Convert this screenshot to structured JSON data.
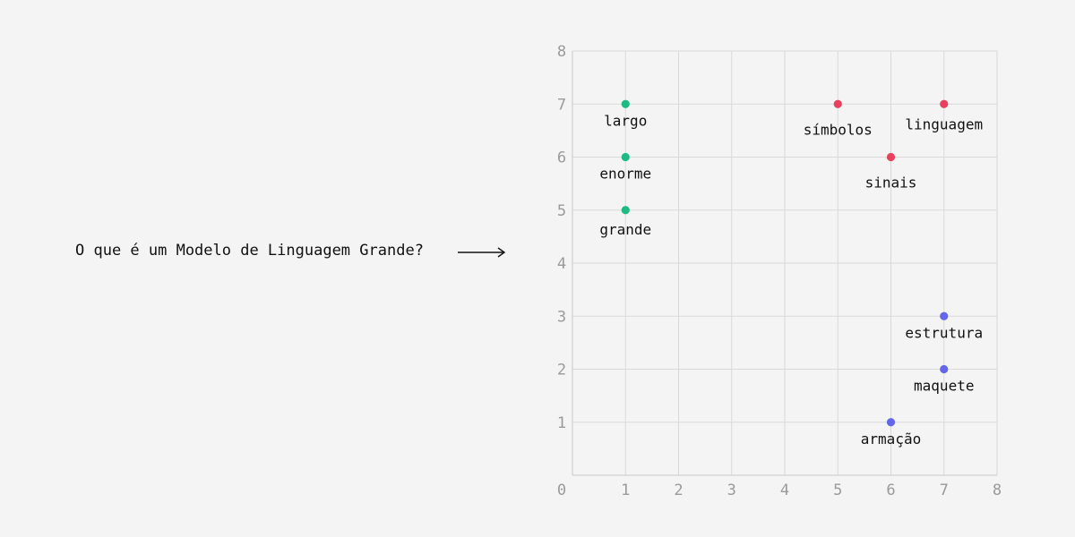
{
  "question": "O que é um Modelo de Linguagem Grande?",
  "chart_data": {
    "type": "scatter",
    "title": "",
    "xlabel": "",
    "ylabel": "",
    "xlim": [
      0,
      8
    ],
    "ylim": [
      0,
      8
    ],
    "grid": true,
    "x_ticks": [
      "0",
      "1",
      "2",
      "3",
      "4",
      "5",
      "6",
      "7",
      "8"
    ],
    "y_ticks": [
      "0",
      "1",
      "2",
      "3",
      "4",
      "5",
      "6",
      "7",
      "8"
    ],
    "points": [
      {
        "label": "largo",
        "x": 1,
        "y": 7,
        "color": "#1dbb83"
      },
      {
        "label": "enorme",
        "x": 1,
        "y": 6,
        "color": "#1dbb83"
      },
      {
        "label": "grande",
        "x": 1,
        "y": 5,
        "color": "#1dbb83"
      },
      {
        "label": "símbolos",
        "x": 5,
        "y": 7,
        "color": "#e8405e"
      },
      {
        "label": "linguagem",
        "x": 7,
        "y": 7,
        "color": "#e8405e"
      },
      {
        "label": "sinais",
        "x": 6,
        "y": 6,
        "color": "#e8405e"
      },
      {
        "label": "estrutura",
        "x": 7,
        "y": 3,
        "color": "#6366e8"
      },
      {
        "label": "maquete",
        "x": 7,
        "y": 2,
        "color": "#6366e8"
      },
      {
        "label": "armação",
        "x": 6,
        "y": 1,
        "color": "#6366e8"
      }
    ],
    "colors": {
      "grid": "#d9d9d9",
      "axis": "#c8c8c8",
      "tick": "#9a9a9a",
      "text": "#111111"
    }
  }
}
